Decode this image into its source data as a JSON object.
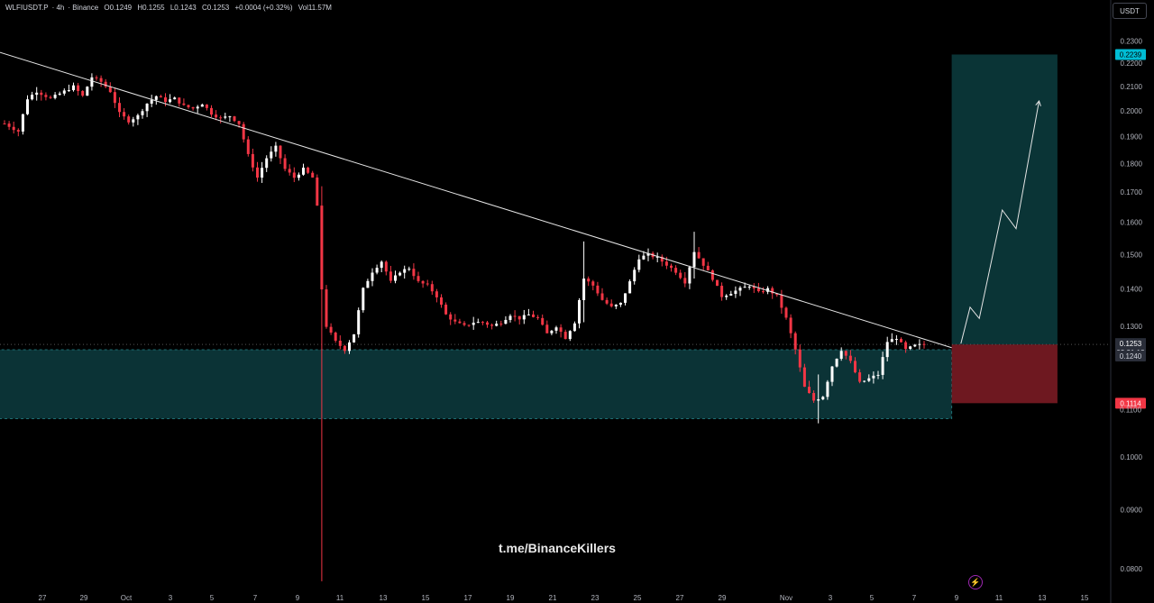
{
  "header": {
    "symbol": "WLFIUSDT.P",
    "interval": "4h",
    "exchange": "Binance",
    "open": "O0.1249",
    "high": "H0.1255",
    "low": "L0.1243",
    "close": "C0.1253",
    "change": "+0.0004 (+0.32%)",
    "volume": "Vol11.57M"
  },
  "quote_currency": "USDT",
  "watermark": "t.me/BinanceKillers",
  "colors": {
    "background": "#000000",
    "up": "#ffffff",
    "down": "#f23645",
    "zone": "#0d3c3f",
    "target": "#0b3a3c",
    "stop": "#7a1b24",
    "target_label": "#00bcd4",
    "stop_label": "#f23645"
  },
  "chart_data": {
    "type": "candlestick",
    "y_scale": "log",
    "ylim": [
      0.077,
      0.24
    ],
    "y_ticks": [
      "0.2300",
      "0.2200",
      "0.2100",
      "0.2000",
      "0.1900",
      "0.1800",
      "0.1700",
      "0.1600",
      "0.1500",
      "0.1400",
      "0.1300",
      "0.1000",
      "0.0900",
      "0.0800"
    ],
    "x_ticks": [
      "27",
      "29",
      "Oct",
      "3",
      "5",
      "7",
      "9",
      "11",
      "13",
      "15",
      "17",
      "19",
      "21",
      "23",
      "25",
      "27",
      "29",
      "Nov",
      "3",
      "5",
      "7",
      "9",
      "11",
      "13",
      "15"
    ],
    "price_labels": {
      "target": "0.2239",
      "last": "0.1253",
      "countdown": "03:21:13",
      "support": "0.1240",
      "stop": "0.1114",
      "hidden": "0.1100"
    },
    "price_path": [
      [
        0,
        0.195
      ],
      [
        3,
        0.192
      ],
      [
        5,
        0.205
      ],
      [
        7,
        0.208
      ],
      [
        10,
        0.205
      ],
      [
        12,
        0.207
      ],
      [
        15,
        0.21
      ],
      [
        17,
        0.206
      ],
      [
        19,
        0.214
      ],
      [
        21,
        0.212
      ],
      [
        23,
        0.208
      ],
      [
        25,
        0.199
      ],
      [
        27,
        0.196
      ],
      [
        29,
        0.198
      ],
      [
        31,
        0.203
      ],
      [
        33,
        0.206
      ],
      [
        35,
        0.204
      ],
      [
        37,
        0.205
      ],
      [
        39,
        0.202
      ],
      [
        41,
        0.201
      ],
      [
        43,
        0.203
      ],
      [
        45,
        0.199
      ],
      [
        47,
        0.197
      ],
      [
        49,
        0.198
      ],
      [
        51,
        0.195
      ],
      [
        53,
        0.183
      ],
      [
        55,
        0.175
      ],
      [
        57,
        0.182
      ],
      [
        59,
        0.186
      ],
      [
        61,
        0.178
      ],
      [
        63,
        0.175
      ],
      [
        65,
        0.178
      ],
      [
        67,
        0.175
      ],
      [
        68,
        0.165
      ],
      [
        69,
        0.14
      ],
      [
        70,
        0.13
      ],
      [
        72,
        0.126
      ],
      [
        74,
        0.124
      ],
      [
        76,
        0.128
      ],
      [
        78,
        0.14
      ],
      [
        80,
        0.145
      ],
      [
        82,
        0.148
      ],
      [
        84,
        0.142
      ],
      [
        86,
        0.145
      ],
      [
        88,
        0.146
      ],
      [
        90,
        0.142
      ],
      [
        92,
        0.141
      ],
      [
        94,
        0.138
      ],
      [
        96,
        0.133
      ],
      [
        98,
        0.131
      ],
      [
        100,
        0.13
      ],
      [
        102,
        0.131
      ],
      [
        104,
        0.131
      ],
      [
        106,
        0.13
      ],
      [
        108,
        0.131
      ],
      [
        110,
        0.133
      ],
      [
        112,
        0.132
      ],
      [
        114,
        0.133
      ],
      [
        116,
        0.132
      ],
      [
        118,
        0.128
      ],
      [
        120,
        0.13
      ],
      [
        122,
        0.127
      ],
      [
        124,
        0.131
      ],
      [
        126,
        0.143
      ],
      [
        128,
        0.141
      ],
      [
        130,
        0.137
      ],
      [
        132,
        0.135
      ],
      [
        134,
        0.136
      ],
      [
        136,
        0.142
      ],
      [
        138,
        0.149
      ],
      [
        140,
        0.15
      ],
      [
        142,
        0.149
      ],
      [
        144,
        0.147
      ],
      [
        146,
        0.145
      ],
      [
        148,
        0.142
      ],
      [
        150,
        0.151
      ],
      [
        152,
        0.147
      ],
      [
        154,
        0.143
      ],
      [
        156,
        0.138
      ],
      [
        158,
        0.139
      ],
      [
        160,
        0.14
      ],
      [
        162,
        0.141
      ],
      [
        164,
        0.139
      ],
      [
        166,
        0.14
      ],
      [
        168,
        0.138
      ],
      [
        170,
        0.132
      ],
      [
        172,
        0.124
      ],
      [
        174,
        0.115
      ],
      [
        176,
        0.112
      ],
      [
        178,
        0.113
      ],
      [
        180,
        0.12
      ],
      [
        182,
        0.124
      ],
      [
        184,
        0.121
      ],
      [
        186,
        0.116
      ],
      [
        188,
        0.117
      ],
      [
        190,
        0.118
      ],
      [
        192,
        0.126
      ],
      [
        194,
        0.127
      ],
      [
        196,
        0.124
      ],
      [
        198,
        0.125
      ],
      [
        200,
        0.1253
      ]
    ],
    "spikes": [
      {
        "at": 69,
        "low": 0.078,
        "high": 0.172
      },
      {
        "at": 150,
        "low": 0.143,
        "high": 0.157
      },
      {
        "at": 126,
        "low": 0.131,
        "high": 0.154
      },
      {
        "at": 177,
        "low": 0.107,
        "high": 0.118
      }
    ],
    "annotations": {
      "trendline": {
        "from": [
          -2,
          0.2255
        ],
        "to": [
          206,
          0.1245
        ]
      },
      "support_zone": {
        "from": -3,
        "to": 206,
        "top": 0.124,
        "bottom": 0.108
      },
      "long_position": {
        "from": 206,
        "to": 229,
        "entry": 0.1253,
        "target": 0.2239,
        "stop": 0.1114
      },
      "projection_arrow": [
        [
          208,
          0.1255
        ],
        [
          210,
          0.135
        ],
        [
          212,
          0.132
        ],
        [
          217,
          0.164
        ],
        [
          220,
          0.158
        ],
        [
          225,
          0.204
        ]
      ]
    }
  }
}
